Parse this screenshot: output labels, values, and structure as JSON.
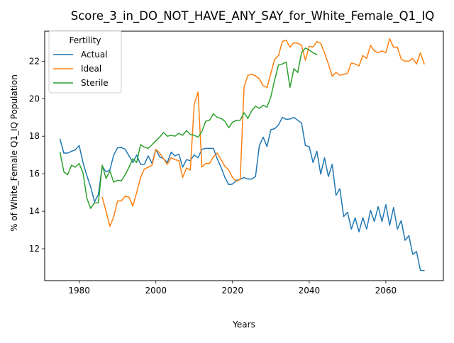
{
  "chart_data": {
    "type": "line",
    "title": "Score_3_in_DO_NOT_HAVE_ANY_SAY_for_White_Female_Q1_IQ",
    "xlabel": "Years",
    "ylabel": "% of White_Female Q1_IQ Population",
    "xlim": [
      1971,
      2075
    ],
    "ylim": [
      10.3,
      23.6
    ],
    "xticks": [
      1980,
      2000,
      2020,
      2040,
      2060
    ],
    "yticks": [
      12,
      14,
      16,
      18,
      20,
      22
    ],
    "grid": false,
    "legend": {
      "title": "Fertility",
      "position": "top-left"
    },
    "series": [
      {
        "name": "Actual",
        "color": "#1f77b4",
        "x": [
          1975,
          1976,
          1977,
          1978,
          1979,
          1980,
          1981,
          1982,
          1983,
          1984,
          1985,
          1986,
          1987,
          1988,
          1989,
          1990,
          1991,
          1992,
          1993,
          1994,
          1995,
          1996,
          1997,
          1998,
          1999,
          2000,
          2001,
          2002,
          2003,
          2004,
          2005,
          2006,
          2007,
          2008,
          2009,
          2010,
          2011,
          2012,
          2013,
          2014,
          2015,
          2016,
          2017,
          2018,
          2019,
          2020,
          2021,
          2022,
          2023,
          2024,
          2025,
          2026,
          2027,
          2028,
          2029,
          2030,
          2031,
          2032,
          2033,
          2034,
          2035,
          2036,
          2037,
          2038,
          2039,
          2040,
          2041,
          2042,
          2043,
          2044,
          2045,
          2046,
          2047,
          2048,
          2049,
          2050,
          2051,
          2052,
          2053,
          2054,
          2055,
          2056,
          2057,
          2058,
          2059,
          2060,
          2061,
          2062,
          2063,
          2064,
          2065,
          2066,
          2067,
          2068,
          2069,
          2070
        ],
        "values": [
          17.85,
          17.1,
          17.1,
          17.2,
          17.27,
          17.5,
          16.6,
          15.9,
          15.3,
          14.5,
          14.9,
          16.4,
          16.1,
          16.2,
          17.0,
          17.38,
          17.4,
          17.3,
          16.95,
          16.6,
          17.0,
          16.5,
          16.5,
          16.95,
          16.55,
          17.3,
          16.9,
          16.8,
          16.6,
          17.15,
          16.95,
          17.05,
          16.35,
          16.75,
          16.7,
          17.0,
          16.85,
          17.3,
          17.35,
          17.35,
          17.35,
          16.8,
          16.35,
          15.8,
          15.42,
          15.45,
          15.65,
          15.7,
          15.8,
          15.72,
          15.72,
          15.85,
          17.5,
          17.95,
          17.45,
          18.35,
          18.4,
          18.6,
          19.0,
          18.9,
          18.92,
          19.0,
          18.85,
          18.7,
          17.5,
          17.45,
          16.6,
          17.2,
          15.98,
          16.85,
          15.85,
          16.5,
          14.85,
          15.2,
          13.72,
          13.95,
          13.05,
          13.65,
          12.9,
          13.65,
          13.05,
          14.05,
          13.45,
          14.25,
          13.45,
          14.35,
          13.25,
          14.2,
          13.05,
          13.5,
          12.45,
          12.7,
          11.7,
          11.85,
          10.85,
          10.84
        ]
      },
      {
        "name": "Ideal",
        "color": "#ff7f0e",
        "x": [
          1986,
          1987,
          1988,
          1989,
          1990,
          1991,
          1992,
          1993,
          1994,
          1995,
          1996,
          1997,
          1998,
          1999,
          2000,
          2001,
          2002,
          2003,
          2004,
          2005,
          2006,
          2007,
          2008,
          2009,
          2010,
          2011,
          2012,
          2013,
          2014,
          2015,
          2016,
          2017,
          2018,
          2019,
          2020,
          2021,
          2022,
          2023,
          2024,
          2025,
          2026,
          2027,
          2028,
          2029,
          2030,
          2031,
          2032,
          2033,
          2034,
          2035,
          2036,
          2037,
          2038,
          2039,
          2040,
          2041,
          2042,
          2043,
          2044,
          2045,
          2046,
          2047,
          2048,
          2049,
          2050,
          2051,
          2052,
          2053,
          2054,
          2055,
          2056,
          2057,
          2058,
          2059,
          2060,
          2061,
          2062,
          2063,
          2064,
          2065,
          2066,
          2067,
          2068,
          2069,
          2070
        ],
        "values": [
          14.75,
          14.0,
          13.2,
          13.7,
          14.55,
          14.55,
          14.8,
          14.75,
          14.28,
          15.0,
          15.8,
          16.25,
          16.35,
          16.45,
          17.3,
          17.1,
          16.8,
          16.5,
          16.85,
          16.75,
          16.7,
          15.8,
          16.3,
          16.2,
          19.7,
          20.35,
          16.35,
          16.55,
          16.55,
          16.9,
          17.1,
          16.75,
          16.4,
          16.2,
          15.8,
          15.6,
          15.7,
          20.6,
          21.25,
          21.3,
          21.22,
          21.05,
          20.7,
          20.6,
          21.35,
          22.1,
          22.3,
          23.05,
          23.12,
          22.75,
          22.98,
          22.95,
          22.85,
          22.05,
          22.8,
          22.75,
          23.05,
          22.95,
          22.45,
          21.85,
          21.2,
          21.4,
          21.25,
          21.3,
          21.35,
          21.9,
          21.85,
          21.75,
          22.3,
          22.15,
          22.85,
          22.55,
          22.45,
          22.55,
          22.45,
          23.2,
          22.75,
          22.75,
          22.1,
          22.0,
          22.0,
          22.15,
          21.85,
          22.45,
          21.85
        ]
      },
      {
        "name": "Sterile",
        "color": "#2ca02c",
        "x": [
          1975,
          1976,
          1977,
          1978,
          1979,
          1980,
          1981,
          1982,
          1983,
          1984,
          1985,
          1986,
          1987,
          1988,
          1989,
          1990,
          1991,
          1992,
          1993,
          1994,
          1995,
          1996,
          1997,
          1998,
          1999,
          2000,
          2001,
          2002,
          2003,
          2004,
          2005,
          2006,
          2007,
          2008,
          2009,
          2010,
          2011,
          2012,
          2013,
          2014,
          2015,
          2016,
          2017,
          2018,
          2019,
          2020,
          2021,
          2022,
          2023,
          2024,
          2025,
          2026,
          2027,
          2028,
          2029,
          2030,
          2031,
          2032,
          2033,
          2034,
          2035,
          2036,
          2037,
          2038,
          2039,
          2040,
          2041,
          2042
        ],
        "values": [
          17.15,
          16.1,
          15.95,
          16.45,
          16.35,
          16.55,
          16.05,
          14.7,
          14.15,
          14.45,
          14.45,
          16.45,
          15.75,
          16.15,
          15.55,
          15.65,
          15.62,
          15.95,
          16.35,
          16.8,
          16.6,
          17.55,
          17.42,
          17.35,
          17.55,
          17.75,
          17.95,
          18.2,
          18.0,
          18.05,
          18.0,
          18.15,
          18.05,
          18.3,
          18.1,
          18.05,
          17.95,
          18.25,
          18.8,
          18.85,
          19.2,
          19.0,
          18.95,
          18.8,
          18.45,
          18.75,
          18.85,
          18.85,
          19.25,
          18.95,
          19.35,
          19.6,
          19.48,
          19.65,
          19.55,
          20.1,
          21.0,
          21.8,
          21.85,
          21.95,
          20.6,
          21.6,
          21.4,
          22.45,
          22.7,
          22.6,
          22.45,
          22.35
        ]
      }
    ]
  }
}
